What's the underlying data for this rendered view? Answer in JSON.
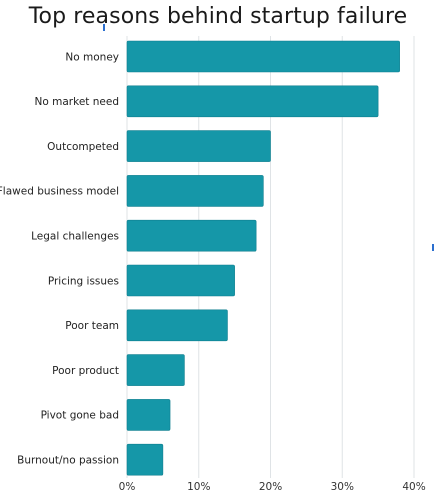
{
  "chart_data": {
    "type": "bar",
    "orientation": "horizontal",
    "title": "Top reasons behind startup failure",
    "xlabel": "",
    "ylabel": "",
    "categories": [
      "No money",
      "No market need",
      "Outcompeted",
      "Flawed business model",
      "Legal challenges",
      "Pricing issues",
      "Poor team",
      "Poor product",
      "Pivot gone bad",
      "Burnout/no passion"
    ],
    "values": [
      38,
      35,
      20,
      19,
      18,
      15,
      14,
      8,
      6,
      5
    ],
    "xlim": [
      0,
      40
    ],
    "xticks": [
      "0%",
      "10%",
      "20%",
      "30%",
      "40%"
    ],
    "grid": true,
    "colors": {
      "bar": "#1597a8",
      "bar_stroke": "#0f7f8f",
      "grid": "#dfe3e6",
      "text": "#222222",
      "axis_text": "#333333"
    }
  }
}
